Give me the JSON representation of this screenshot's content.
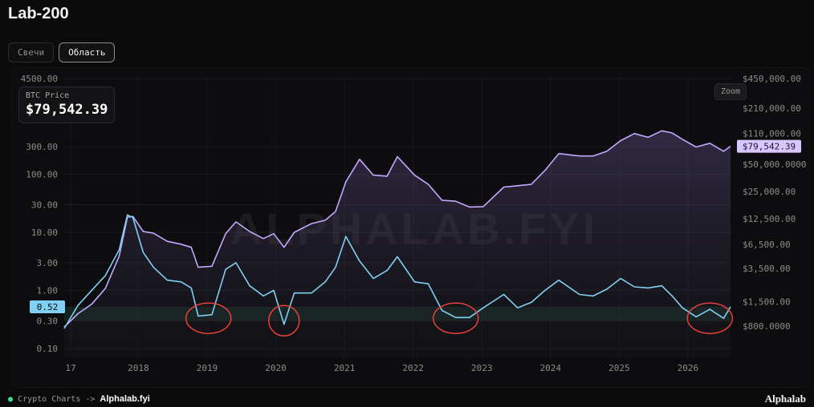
{
  "title": "Lab-200",
  "tabs": [
    {
      "label": "Свечи",
      "active": false
    },
    {
      "label": "Область",
      "active": true
    }
  ],
  "price_card": {
    "label": "BTC Price",
    "value": "$79,542.39"
  },
  "zoom_label": "Zoom",
  "footer": {
    "prefix": "Crypto Charts ->",
    "brand": "Alphalab.fyi"
  },
  "logo": {
    "text": "Alphalab"
  },
  "watermark": "ALPHALAB.FYI",
  "colors": {
    "price_line": "#c4a8ff",
    "indicator_line": "#7fd0f2",
    "indicator_low": "#6ee0b8",
    "circle": "#e8413a",
    "band": "#1e3f30"
  },
  "chart_data": {
    "type": "line",
    "log_scale": true,
    "grid": true,
    "x_tick_labels": [
      "17",
      "2018",
      "2019",
      "2020",
      "2021",
      "2022",
      "2023",
      "2024",
      "2025",
      "2026"
    ],
    "left_axis": {
      "ticks": [
        4500,
        300,
        100,
        30,
        10,
        3,
        1,
        0.3,
        0.1
      ],
      "tick_labels": [
        "4500.00",
        "300.00",
        "100.00",
        "30.00",
        "10.00",
        "3.00",
        "1.00",
        "0.30",
        "0.10"
      ],
      "current_value": "0.52"
    },
    "right_axis": {
      "ticks": [
        450000,
        210000,
        110000,
        50000,
        25000,
        12500,
        6500,
        3500,
        1500,
        800
      ],
      "tick_labels": [
        "$450,000.00",
        "$210,000.00",
        "$110,000.00",
        "$50,000.0000",
        "$25,000.00",
        "$12,500.00",
        "$6,500.00",
        "$3,500.00",
        "$1,500.00",
        "$800.0000"
      ],
      "current_value": "$79,542.39"
    },
    "series": [
      {
        "key": "price",
        "axis": "right",
        "x": [
          2017.0,
          2017.2,
          2017.4,
          2017.6,
          2017.8,
          2017.92,
          2018.0,
          2018.15,
          2018.3,
          2018.5,
          2018.7,
          2018.85,
          2018.95,
          2019.15,
          2019.35,
          2019.5,
          2019.7,
          2019.9,
          2020.05,
          2020.2,
          2020.35,
          2020.6,
          2020.8,
          2020.95,
          2021.1,
          2021.3,
          2021.5,
          2021.7,
          2021.85,
          2022.1,
          2022.3,
          2022.5,
          2022.7,
          2022.9,
          2023.1,
          2023.4,
          2023.6,
          2023.8,
          2024.0,
          2024.2,
          2024.5,
          2024.7,
          2024.9,
          2025.1,
          2025.3,
          2025.5,
          2025.7,
          2025.85,
          2026.0,
          2026.2,
          2026.4,
          2026.6,
          2026.7
        ],
        "y": [
          780,
          1100,
          1400,
          2100,
          4800,
          13000,
          13200,
          9000,
          8600,
          7000,
          6500,
          6000,
          3600,
          3700,
          8500,
          11500,
          9000,
          7500,
          8500,
          6000,
          8800,
          11000,
          12000,
          15000,
          32000,
          57000,
          38000,
          37000,
          61000,
          38000,
          30000,
          20000,
          19500,
          16800,
          17000,
          28000,
          29000,
          30000,
          43000,
          66000,
          62000,
          62000,
          70000,
          92000,
          110000,
          100000,
          118000,
          112000,
          95000,
          78000,
          86000,
          70000,
          79542
        ]
      },
      {
        "key": "indicator",
        "axis": "left",
        "x": [
          2017.0,
          2017.2,
          2017.4,
          2017.6,
          2017.8,
          2017.92,
          2018.0,
          2018.15,
          2018.3,
          2018.5,
          2018.7,
          2018.85,
          2018.95,
          2019.15,
          2019.35,
          2019.5,
          2019.7,
          2019.9,
          2020.05,
          2020.2,
          2020.35,
          2020.6,
          2020.8,
          2020.95,
          2021.1,
          2021.3,
          2021.5,
          2021.7,
          2021.85,
          2022.1,
          2022.3,
          2022.5,
          2022.7,
          2022.9,
          2023.1,
          2023.4,
          2023.6,
          2023.8,
          2024.0,
          2024.2,
          2024.5,
          2024.7,
          2024.9,
          2025.1,
          2025.3,
          2025.5,
          2025.7,
          2025.85,
          2026.0,
          2026.2,
          2026.4,
          2026.6,
          2026.7
        ],
        "y": [
          0.22,
          0.55,
          1.0,
          1.8,
          5.0,
          20.0,
          18.0,
          4.5,
          2.5,
          1.5,
          1.4,
          1.1,
          0.36,
          0.38,
          2.3,
          3.0,
          1.2,
          0.8,
          1.0,
          0.26,
          0.9,
          0.9,
          1.4,
          2.5,
          8.5,
          3.2,
          1.6,
          2.2,
          3.8,
          1.4,
          1.3,
          0.45,
          0.34,
          0.34,
          0.5,
          0.85,
          0.5,
          0.62,
          1.0,
          1.5,
          0.85,
          0.8,
          1.05,
          1.6,
          1.15,
          1.1,
          1.2,
          0.8,
          0.5,
          0.35,
          0.47,
          0.33,
          0.52
        ]
      }
    ],
    "highlight_band": {
      "axis": "left",
      "range": [
        0.3,
        0.52
      ]
    },
    "annotations": [
      {
        "shape": "circle",
        "x_center": 2019.1,
        "y_center": 0.33
      },
      {
        "shape": "circle",
        "x_center": 2020.2,
        "y_center": 0.3
      },
      {
        "shape": "circle",
        "x_center": 2022.7,
        "y_center": 0.33
      },
      {
        "shape": "circle",
        "x_center": 2026.4,
        "y_center": 0.33
      }
    ]
  }
}
